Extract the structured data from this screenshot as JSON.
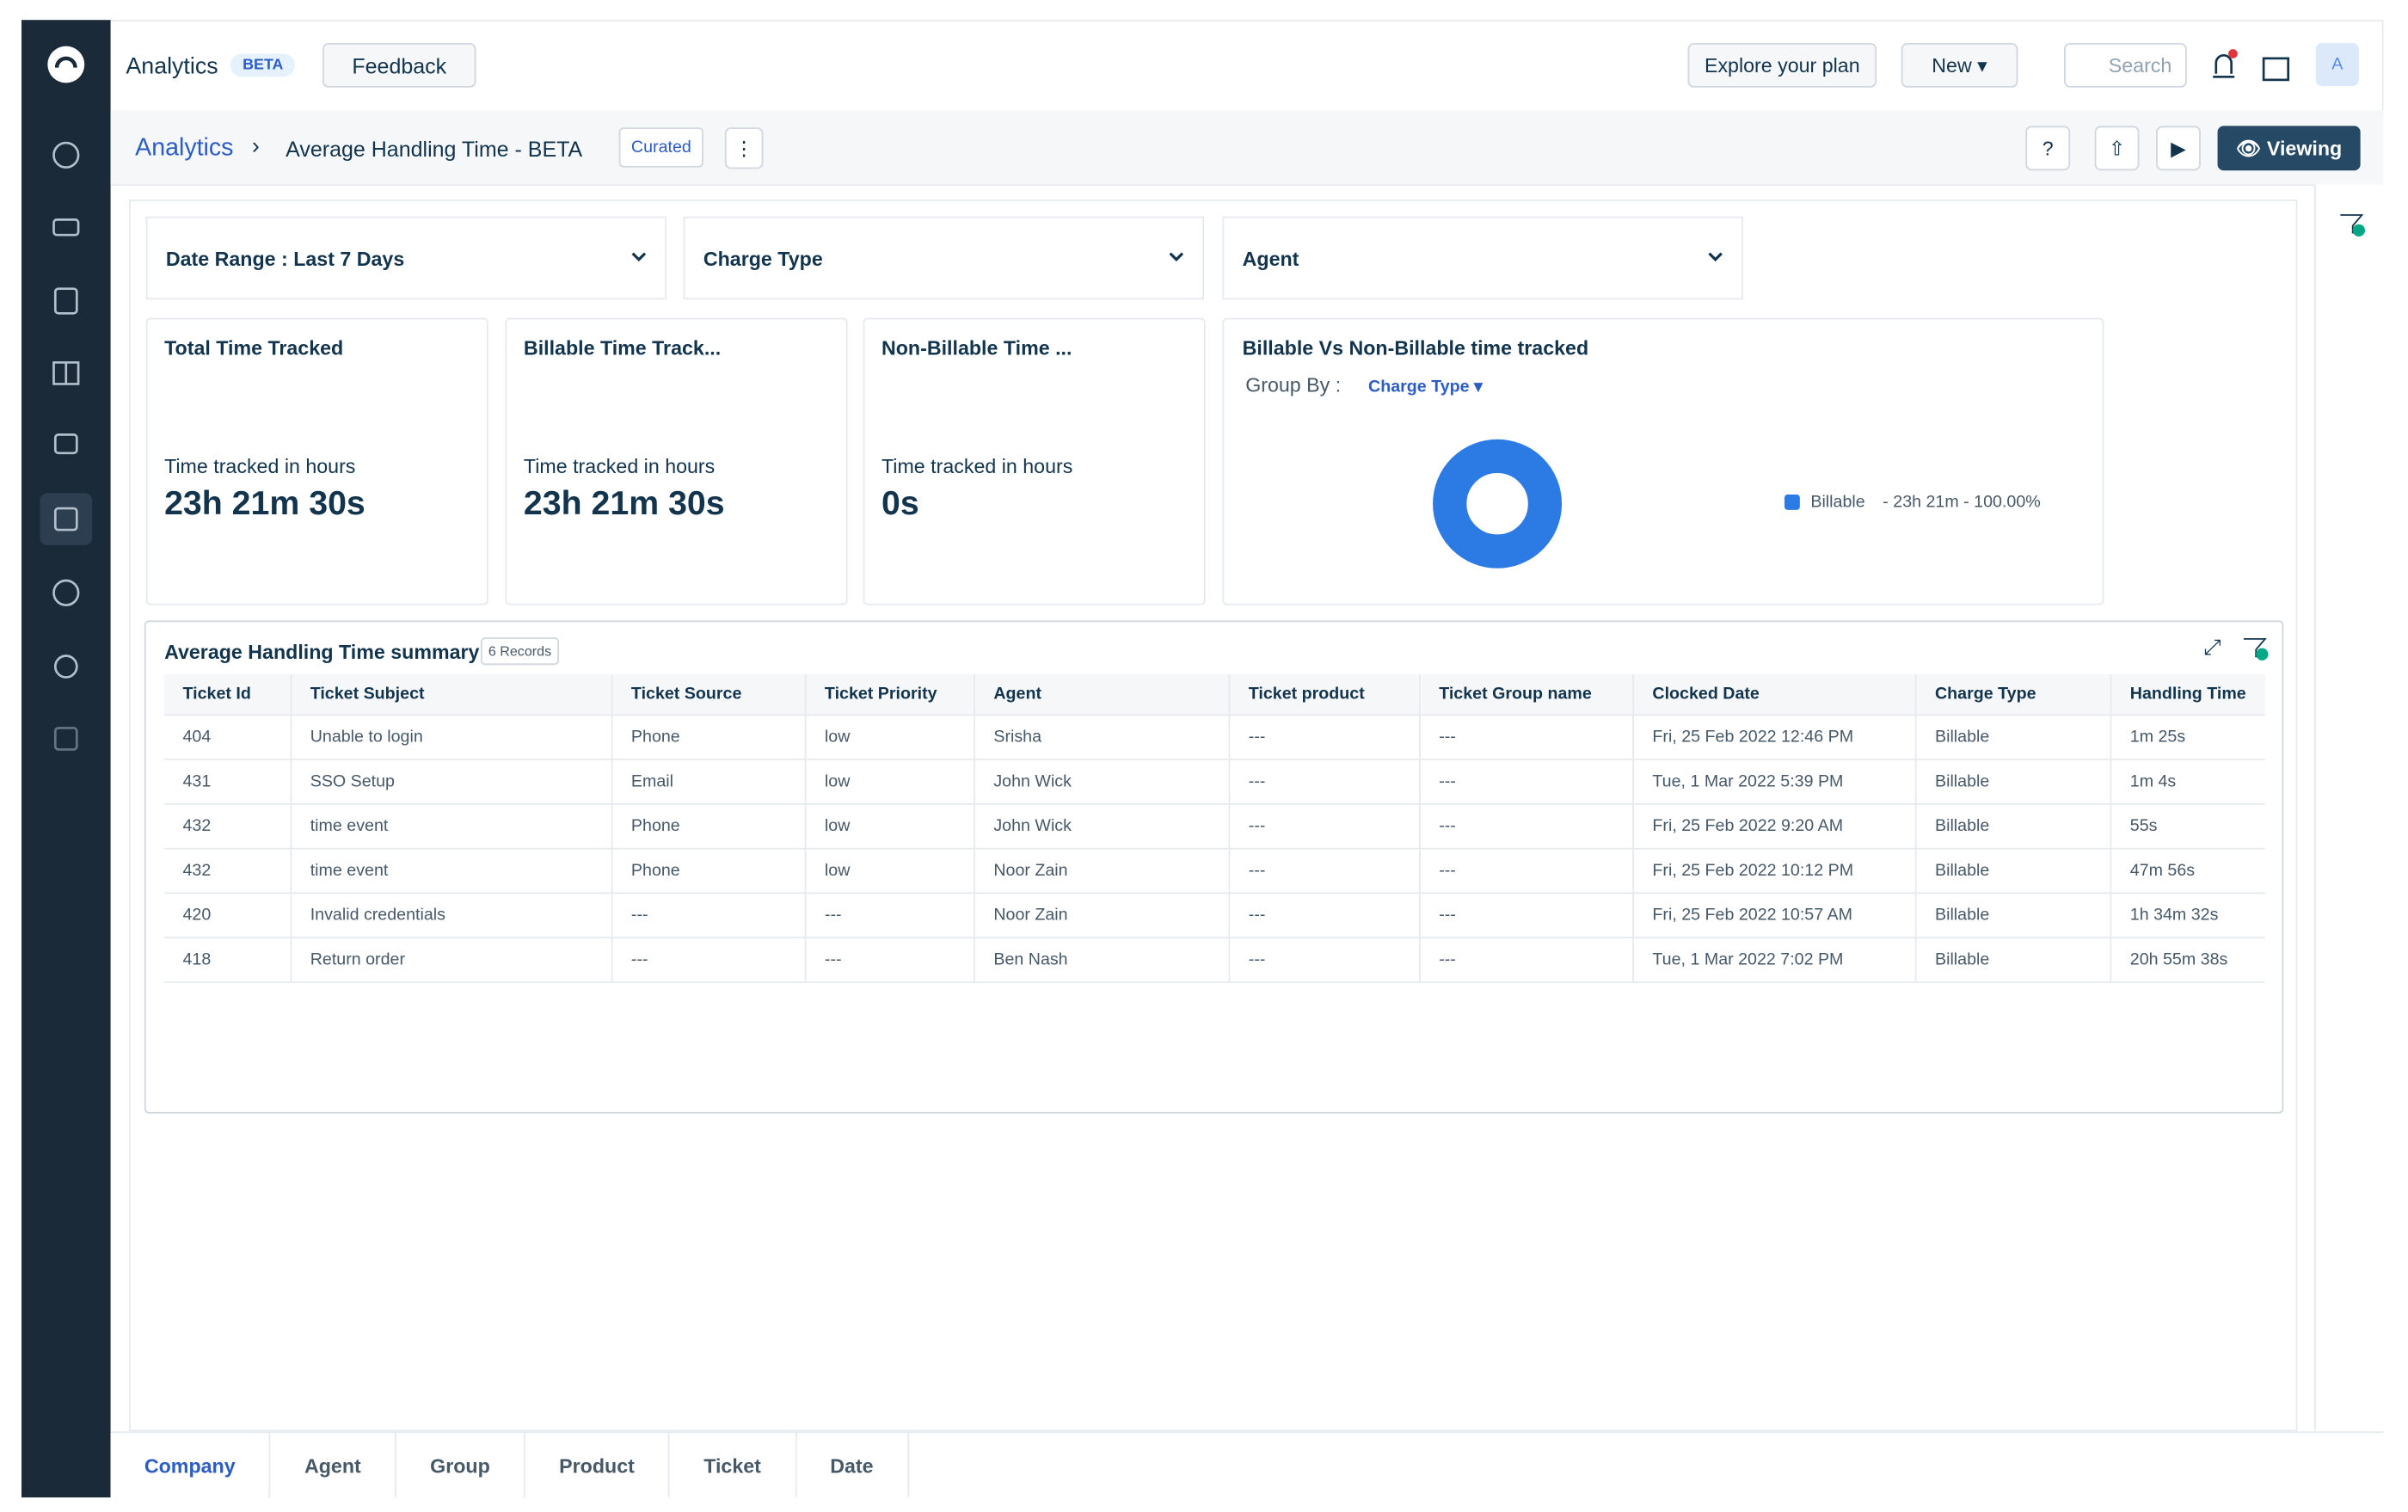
{
  "topbar": {
    "title": "Analytics",
    "badge": "BETA",
    "feedback": "Feedback",
    "explore": "Explore your plan",
    "new": "New",
    "search": "Search",
    "avatar": "A"
  },
  "header": {
    "breadcrumb": "Analytics",
    "title": "Average Handling Time - BETA",
    "tag": "Curated",
    "viewing": "Viewing"
  },
  "filters": [
    "Date Range :  Last 7 Days",
    "Charge Type",
    "Agent"
  ],
  "cards": [
    {
      "title": "Total Time Tracked",
      "label": "Time tracked in hours",
      "value": "23h 21m 30s"
    },
    {
      "title": "Billable Time Track...",
      "label": "Time tracked in hours",
      "value": "23h 21m 30s"
    },
    {
      "title": "Non-Billable Time ...",
      "label": "Time tracked in hours",
      "value": "0s"
    }
  ],
  "donut_card": {
    "title": "Billable Vs Non-Billable time tracked",
    "group_by": "Group By :",
    "group_value": "Charge Type",
    "legend": "Billable",
    "legend_value": "- 23h 21m - 100.00%"
  },
  "table": {
    "title": "Average Handling Time summary",
    "records": "6 Records",
    "columns": [
      "Ticket Id",
      "Ticket Subject",
      "Ticket Source",
      "Ticket Priority",
      "Agent",
      "Ticket product",
      "Ticket Group name",
      "Clocked Date",
      "Charge Type",
      "Handling Time"
    ],
    "rows": [
      [
        "404",
        "Unable to login",
        "Phone",
        "low",
        "Srisha",
        "---",
        "---",
        "Fri, 25 Feb 2022 12:46 PM",
        "Billable",
        "1m 25s"
      ],
      [
        "431",
        "SSO Setup",
        "Email",
        "low",
        "John Wick",
        "---",
        "---",
        "Tue, 1 Mar 2022 5:39 PM",
        "Billable",
        "1m 4s"
      ],
      [
        "432",
        "time event",
        "Phone",
        "low",
        "John Wick",
        "---",
        "---",
        "Fri, 25 Feb 2022 9:20 AM",
        "Billable",
        "55s"
      ],
      [
        "432",
        "time event",
        "Phone",
        "low",
        "Noor Zain",
        "---",
        "---",
        "Fri, 25 Feb 2022 10:12 PM",
        "Billable",
        "47m 56s"
      ],
      [
        "420",
        "Invalid credentials",
        "---",
        "---",
        "Noor Zain",
        "---",
        "---",
        "Fri, 25 Feb 2022 10:57 AM",
        "Billable",
        "1h 34m 32s"
      ],
      [
        "418",
        "Return order",
        "---",
        "---",
        "Ben Nash",
        "---",
        "---",
        "Tue, 1 Mar 2022 7:02 PM",
        "Billable",
        "20h 55m 38s"
      ]
    ]
  },
  "tabs": [
    "Company",
    "Agent",
    "Group",
    "Product",
    "Ticket",
    "Date"
  ]
}
